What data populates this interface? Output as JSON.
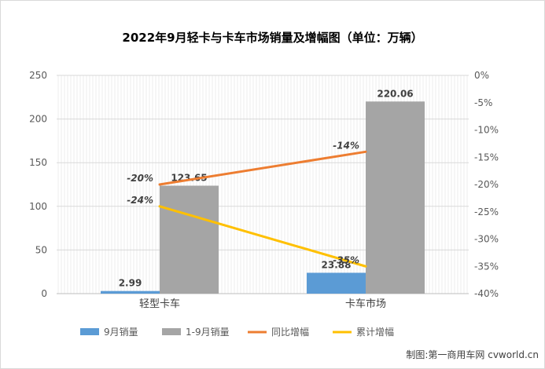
{
  "chart_data": {
    "type": "bar+line",
    "title": "2022年9月轻卡与卡车市场销量及增幅图（单位：万辆）",
    "categories": [
      "轻型卡车",
      "卡车市场"
    ],
    "left_axis": {
      "ticks": [
        "0",
        "50",
        "100",
        "150",
        "200",
        "250"
      ],
      "ylim": [
        0,
        250
      ]
    },
    "right_axis": {
      "ticks": [
        "0%",
        "-5%",
        "-10%",
        "-15%",
        "-20%",
        "-25%",
        "-30%",
        "-35%",
        "-40%"
      ],
      "ylim": [
        -40,
        0
      ]
    },
    "bar_series": [
      {
        "name": "9月销量",
        "color": "#5b9bd5",
        "values": [
          2.99,
          23.88
        ],
        "labels": [
          "2.99",
          "23.88"
        ]
      },
      {
        "name": "1-9月销量",
        "color": "#a5a5a5",
        "values": [
          123.65,
          220.06
        ],
        "labels": [
          "123.65",
          "220.06"
        ]
      }
    ],
    "line_series": [
      {
        "name": "同比增幅",
        "color": "#ed7d31",
        "values": [
          -20,
          -14
        ],
        "labels": [
          "-20%",
          "-14%"
        ]
      },
      {
        "name": "累计增幅",
        "color": "#ffc000",
        "values": [
          -24,
          -35
        ],
        "labels": [
          "-24%",
          "-35%"
        ]
      }
    ],
    "legend": [
      "9月销量",
      "1-9月销量",
      "同比增幅",
      "累计增幅"
    ],
    "legend_position": "bottom",
    "grid": true
  },
  "credit": "制图:第一商用车网 cvworld.cn"
}
